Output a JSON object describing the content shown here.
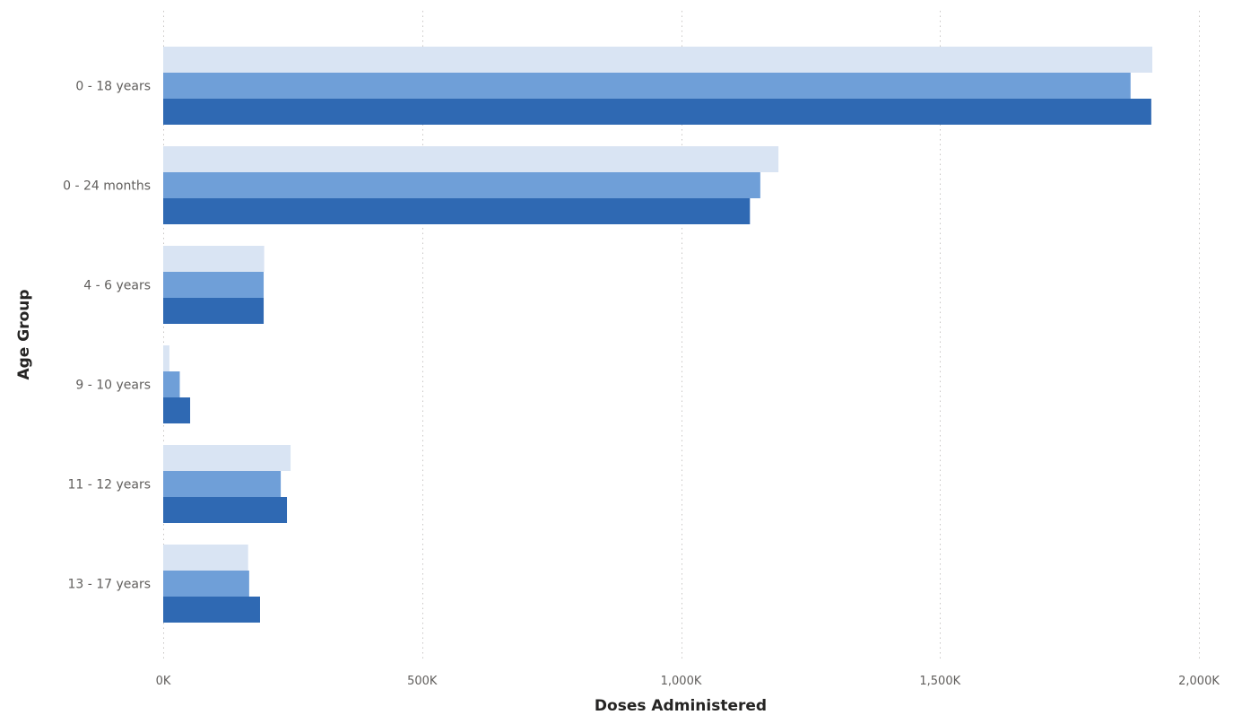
{
  "chart_data": {
    "type": "bar",
    "orientation": "horizontal",
    "categories": [
      "0 - 18 years",
      "0 - 24 months",
      "4 - 6 years",
      "9 - 10 years",
      "11 - 12 years",
      "13 - 17 years"
    ],
    "series": [
      {
        "values": [
          1910000,
          1188000,
          195000,
          12000,
          246000,
          164000
        ],
        "color": "#d9e4f3"
      },
      {
        "values": [
          1868000,
          1153000,
          194000,
          32000,
          227000,
          166000
        ],
        "color": "#6f9fd8"
      },
      {
        "values": [
          1908000,
          1133000,
          194000,
          52000,
          239000,
          187000
        ],
        "color": "#2f69b3"
      }
    ],
    "xlabel": "Doses Administered",
    "ylabel": "Age Group",
    "xlim": [
      0,
      2000000
    ],
    "xticks": [
      0,
      500000,
      1000000,
      1500000,
      2000000
    ],
    "xtick_labels": [
      "0K",
      "500K",
      "1,000K",
      "1,500K",
      "2,000K"
    ],
    "grid": true,
    "legend": false
  }
}
